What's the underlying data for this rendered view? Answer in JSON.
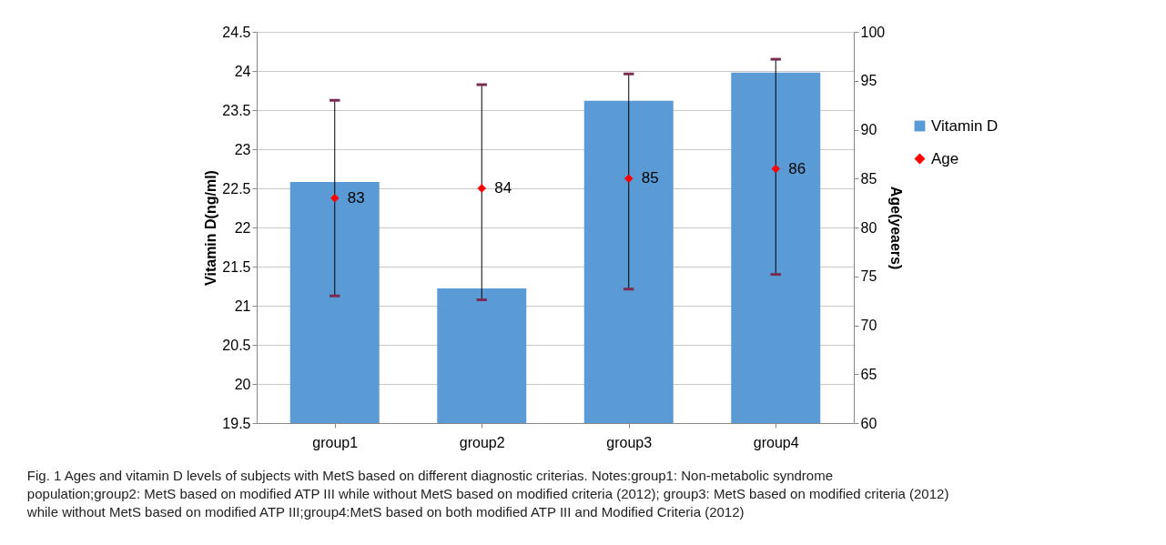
{
  "chart_data": {
    "type": "bar",
    "categories": [
      "group1",
      "group2",
      "group3",
      "group4"
    ],
    "ylabel": "Vitamin D(ng/ml)",
    "y2label": "Age(yeaers)",
    "ylim": [
      19.5,
      24.5
    ],
    "yticks": [
      19.5,
      20,
      20.5,
      21,
      21.5,
      22,
      22.5,
      23,
      23.5,
      24,
      24.5
    ],
    "y2lim": [
      60,
      100
    ],
    "y2ticks": [
      60,
      65,
      70,
      75,
      80,
      85,
      90,
      95,
      100
    ],
    "grid": "y",
    "legend": "right",
    "series": [
      {
        "name": "Vitamin D",
        "color": "#5b9bd5",
        "values": [
          22.58,
          21.22,
          23.62,
          23.98
        ]
      },
      {
        "name": "Age",
        "type": "scatter",
        "marker": "diamond",
        "axis": "y2",
        "color": "#ff0000",
        "values": [
          83,
          84,
          85,
          86
        ],
        "value_labels": [
          "83",
          "84",
          "85",
          "86"
        ],
        "errors": [
          [
            73.0,
            93.0
          ],
          [
            72.6,
            94.6
          ],
          [
            73.7,
            95.7
          ],
          [
            75.2,
            97.2
          ]
        ]
      }
    ],
    "annotations": [
      "Fig. 1 Ages and vitamin D levels of subjects with MetS based on different diagnostic criterias. Notes:group1: Non-metabolic syndrome population;group2: MetS based on modified ATP III while without MetS based on modified criteria (2012); group3: MetS based on modified criteria (2012) while without MetS based on modified ATP III;group4:MetS based on both modified ATP III and Modified Criteria (2012)"
    ]
  }
}
